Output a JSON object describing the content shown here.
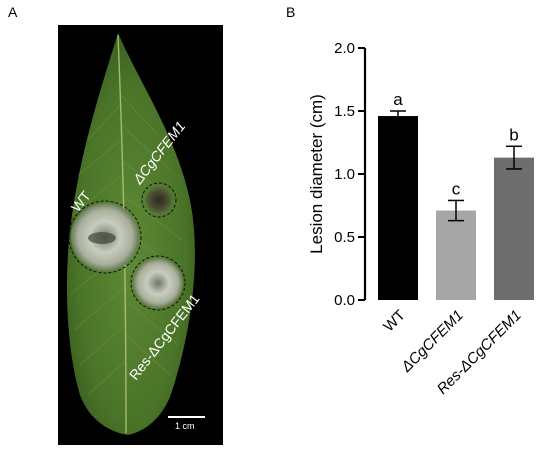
{
  "panels": {
    "a": "A",
    "b": "B"
  },
  "photo": {
    "labels": {
      "wt": "WT",
      "mutant": "ΔCgCFEM1",
      "restored": "Res-ΔCgCFEM1"
    },
    "scale_bar": "1 cm"
  },
  "chart_data": {
    "type": "bar",
    "ylabel": "Lesion diameter (cm)",
    "xlabel": "",
    "ylim": [
      0,
      2.0
    ],
    "yticks": [
      0.0,
      0.5,
      1.0,
      1.5,
      2.0
    ],
    "ytick_labels": [
      "0.0",
      "0.5",
      "1.0",
      "1.5",
      "2.0"
    ],
    "categories": [
      "WT",
      "ΔCgCFEM1",
      "Res-ΔCgCFEM1"
    ],
    "values": [
      1.46,
      0.71,
      1.13
    ],
    "errors": [
      0.04,
      0.08,
      0.09
    ],
    "significance": [
      "a",
      "c",
      "b"
    ],
    "colors": [
      "#000000",
      "#a6a6a6",
      "#6e6e6e"
    ]
  }
}
